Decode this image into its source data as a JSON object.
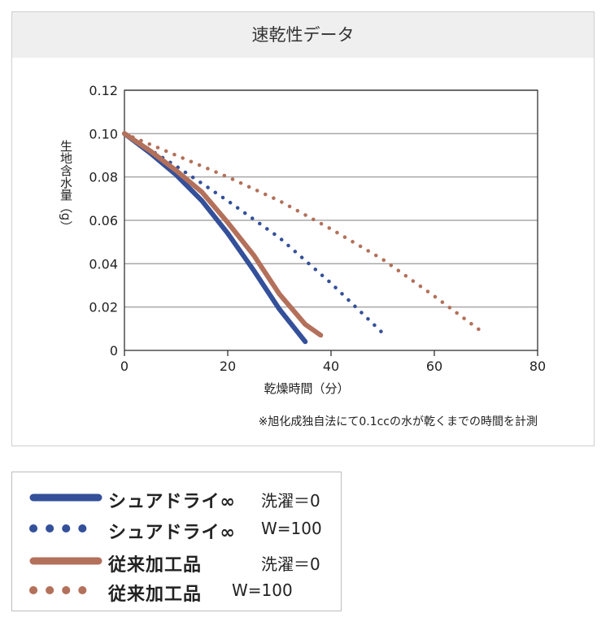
{
  "chart_data": {
    "type": "line",
    "title": "速乾性データ",
    "ylabel": "生地含水量（g）",
    "xlabel": "乾燥時間（分）",
    "note": "※旭化成独自法にて0.1ccの水が乾くまでの時間を計測",
    "xlim": [
      0,
      80
    ],
    "ylim": [
      0,
      0.12
    ],
    "x_ticks": [
      "0",
      "20",
      "40",
      "60",
      "80"
    ],
    "y_ticks": [
      "0",
      "0.02",
      "0.04",
      "0.06",
      "0.08",
      "0.10",
      "0.12"
    ],
    "grid": "horizontal",
    "series": [
      {
        "name": "シュアドライ∞ 洗濯＝0",
        "style": "solid",
        "color": "#34509a",
        "x": [
          0,
          5,
          10,
          15,
          20,
          25,
          30,
          35
        ],
        "y": [
          0.1,
          0.091,
          0.081,
          0.069,
          0.054,
          0.037,
          0.019,
          0.004
        ]
      },
      {
        "name": "シュアドライ∞ W=100",
        "style": "dotted",
        "color": "#34509a",
        "x": [
          0,
          10,
          20,
          30,
          40,
          50
        ],
        "y": [
          0.1,
          0.085,
          0.069,
          0.052,
          0.031,
          0.008
        ]
      },
      {
        "name": "従来加工品 洗濯＝0",
        "style": "solid",
        "color": "#b3705a",
        "x": [
          0,
          5,
          10,
          15,
          20,
          25,
          30,
          35,
          38
        ],
        "y": [
          0.1,
          0.092,
          0.083,
          0.073,
          0.059,
          0.044,
          0.026,
          0.012,
          0.007
        ]
      },
      {
        "name": "従来加工品 W=100",
        "style": "dotted",
        "color": "#b3705a",
        "x": [
          0,
          10,
          20,
          30,
          40,
          50,
          60,
          69
        ],
        "y": [
          0.1,
          0.09,
          0.08,
          0.069,
          0.056,
          0.042,
          0.025,
          0.009
        ]
      }
    ]
  },
  "legend": {
    "items": [
      {
        "name": "シュアドライ∞",
        "condition": "洗濯＝0",
        "style": "solid",
        "color": "#34509a"
      },
      {
        "name": "シュアドライ∞",
        "condition": "W=100",
        "style": "dotted",
        "color": "#34509a"
      },
      {
        "name": "従来加工品",
        "condition": "洗濯＝0",
        "style": "solid",
        "color": "#b3705a"
      },
      {
        "name": "従来加工品",
        "condition": "W=100",
        "style": "dotted",
        "color": "#b3705a"
      }
    ]
  }
}
